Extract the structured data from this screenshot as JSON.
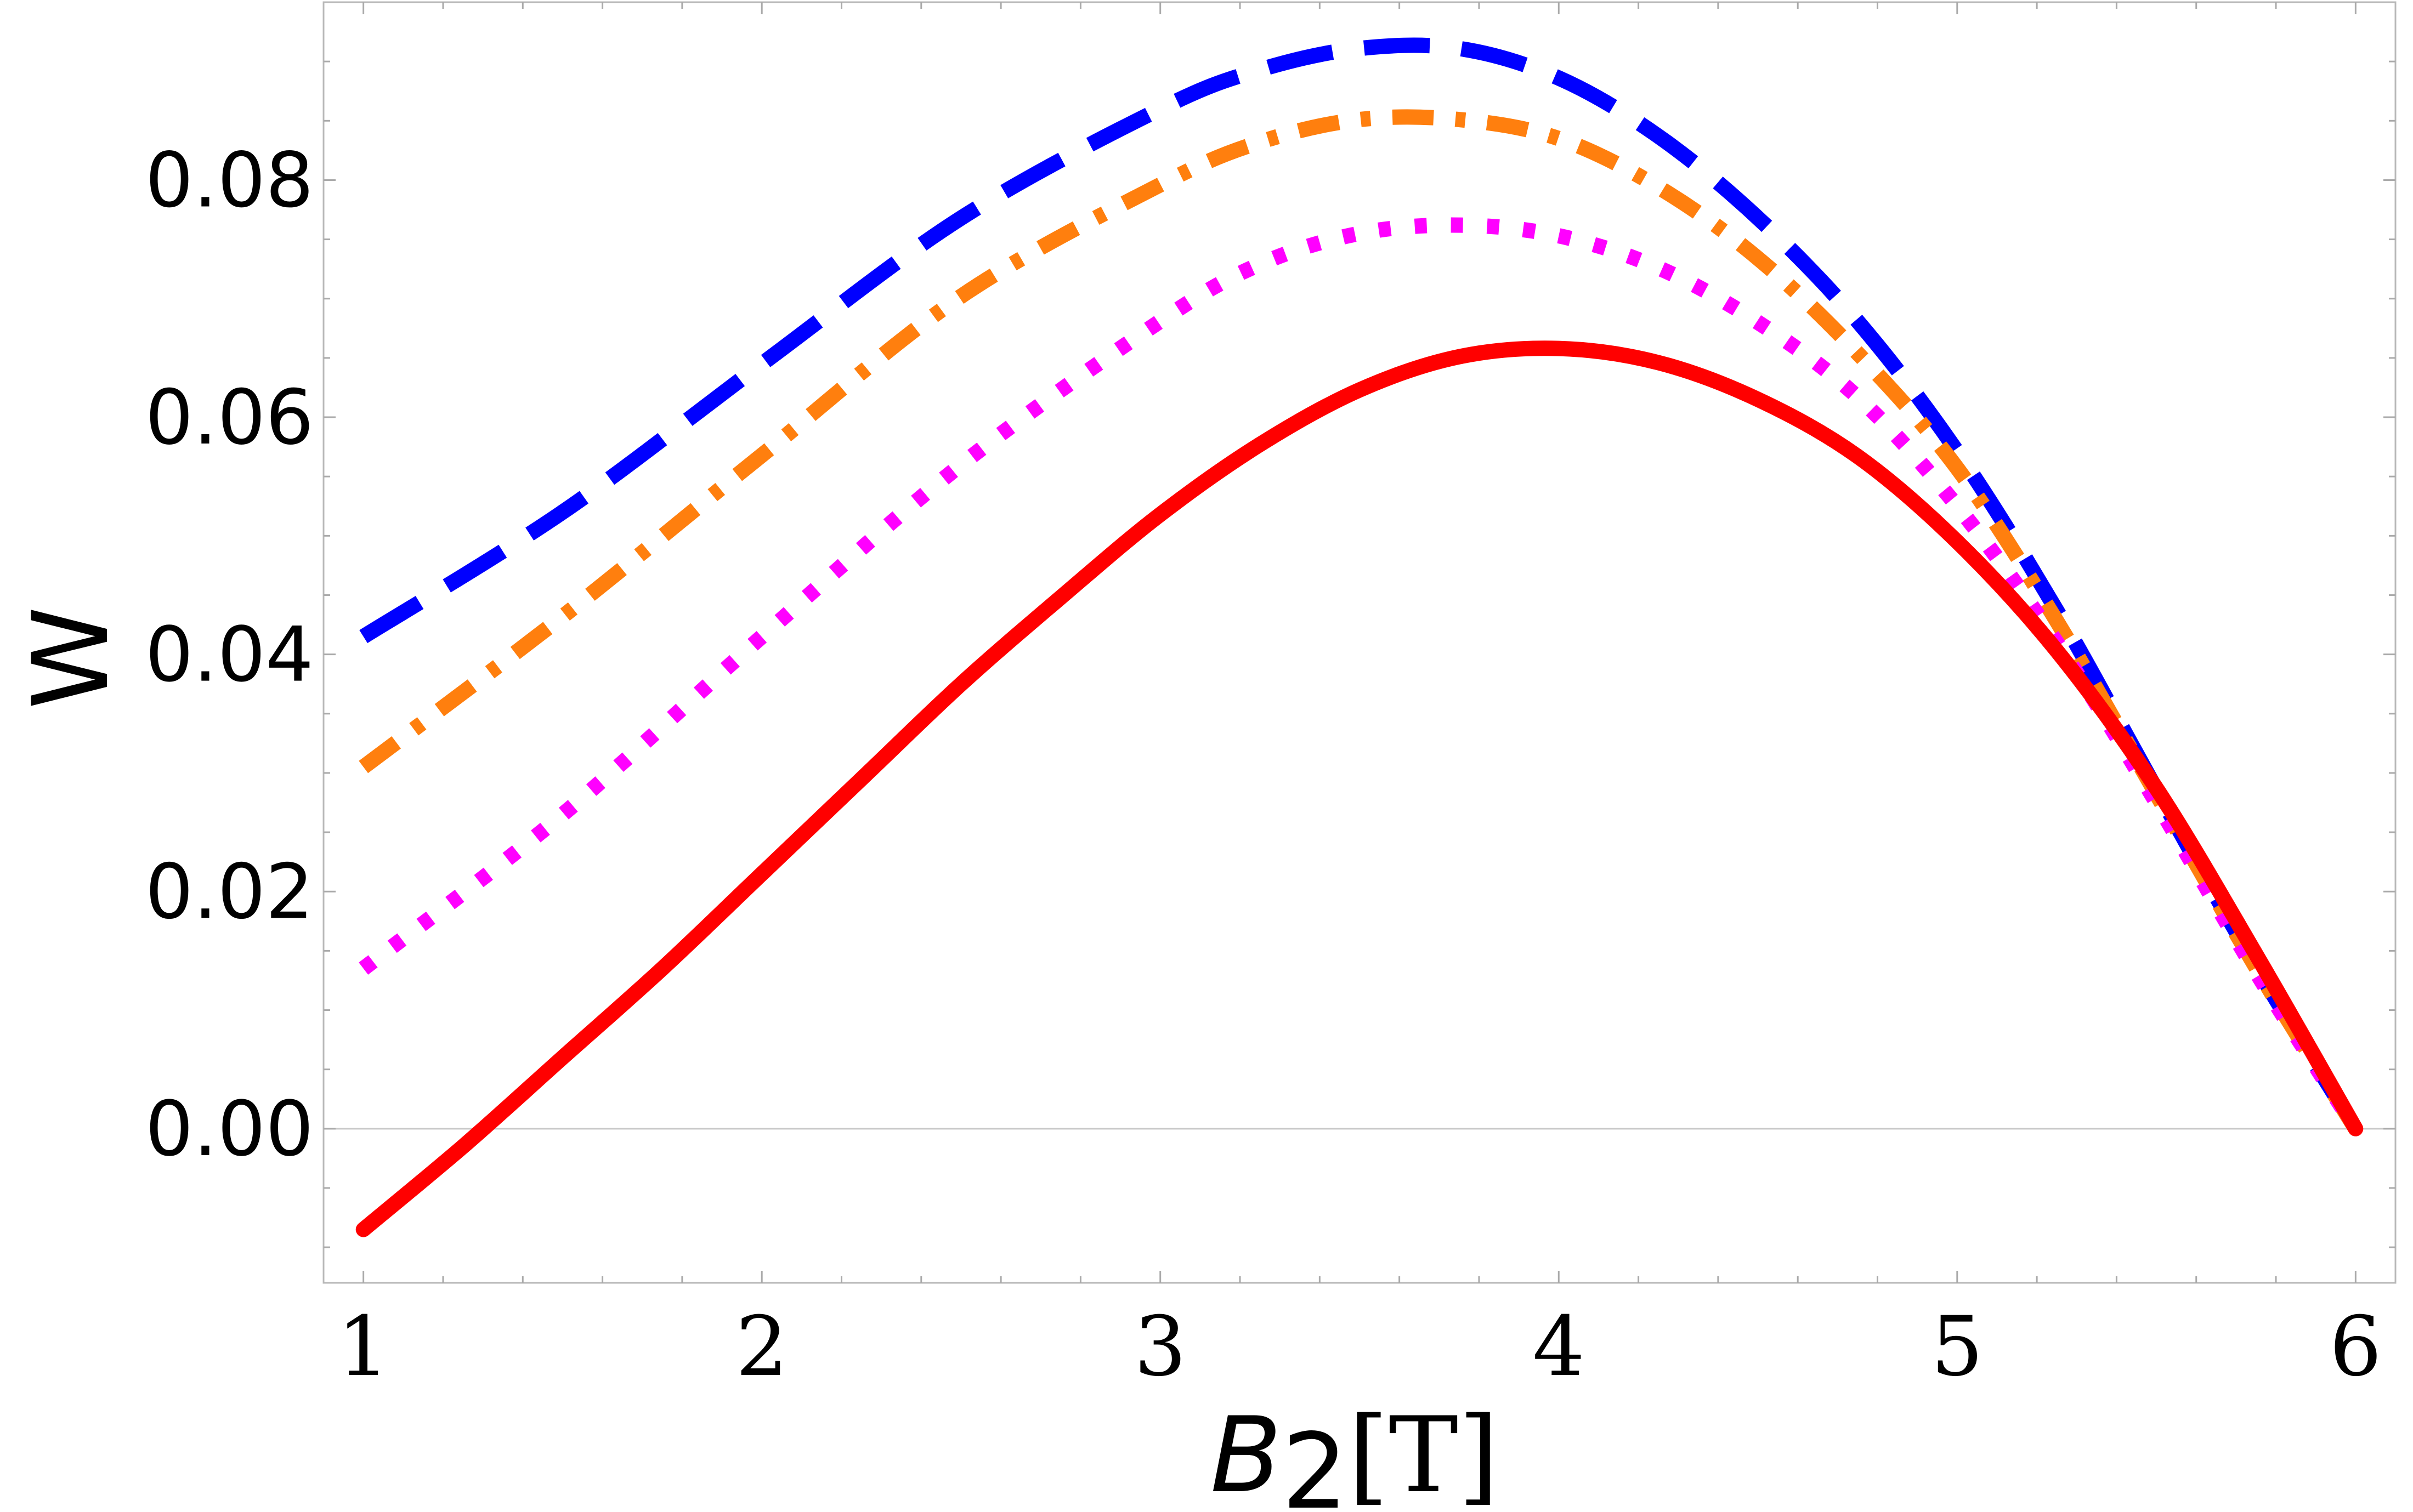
{
  "chart_data": {
    "type": "line",
    "title": "",
    "xlabel": {
      "symbol": "B",
      "subscript": "2",
      "unit": "[T]"
    },
    "ylabel": "W",
    "xlim": [
      0.9,
      6.1
    ],
    "ylim": [
      -0.013,
      0.095
    ],
    "xticks": [
      1,
      2,
      3,
      4,
      5,
      6
    ],
    "xtick_labels": [
      "1",
      "2",
      "3",
      "4",
      "5",
      "6"
    ],
    "yticks": [
      0.0,
      0.02,
      0.04,
      0.06,
      0.08
    ],
    "ytick_labels": [
      "0.00",
      "0.02",
      "0.04",
      "0.06",
      "0.08"
    ],
    "grid": false,
    "zero_line": true,
    "series": [
      {
        "name": "dashed",
        "color": "#0000ff",
        "dash": "dashed",
        "x": [
          1.0,
          1.5,
          2.0,
          2.5,
          3.0,
          3.25,
          3.5,
          3.75,
          4.0,
          4.25,
          4.5,
          4.75,
          5.0,
          5.25,
          5.5,
          5.75,
          6.0
        ],
        "y": [
          0.0415,
          0.052,
          0.0645,
          0.0768,
          0.086,
          0.0893,
          0.0911,
          0.0911,
          0.0886,
          0.0837,
          0.0768,
          0.0681,
          0.0571,
          0.0437,
          0.0286,
          0.0137,
          0.0
        ]
      },
      {
        "name": "dot-dashed",
        "color": "#ff7f0e",
        "dash": "dotdash",
        "x": [
          1.0,
          1.5,
          2.0,
          2.5,
          3.0,
          3.25,
          3.5,
          3.75,
          4.0,
          4.25,
          4.5,
          4.75,
          5.0,
          5.25,
          5.5,
          5.75,
          6.0
        ],
        "y": [
          0.0305,
          0.0432,
          0.0568,
          0.0702,
          0.0796,
          0.0832,
          0.0851,
          0.0851,
          0.0835,
          0.0794,
          0.0734,
          0.0654,
          0.0557,
          0.0428,
          0.0282,
          0.0136,
          0.0
        ]
      },
      {
        "name": "dotted",
        "color": "#ff00ff",
        "dash": "dotted",
        "x": [
          1.0,
          1.5,
          2.0,
          2.5,
          3.0,
          3.25,
          3.5,
          3.75,
          4.0,
          4.25,
          4.5,
          4.75,
          5.0,
          5.25,
          5.5,
          5.75,
          6.0
        ],
        "y": [
          0.0135,
          0.0265,
          0.0415,
          0.056,
          0.0681,
          0.0729,
          0.0755,
          0.0762,
          0.0753,
          0.0726,
          0.068,
          0.0617,
          0.0525,
          0.041,
          0.0275,
          0.0132,
          0.0
        ]
      },
      {
        "name": "solid",
        "color": "#ff0000",
        "dash": "solid",
        "x": [
          1.0,
          1.25,
          1.5,
          1.75,
          2.0,
          2.25,
          2.5,
          2.75,
          3.0,
          3.25,
          3.5,
          3.75,
          4.0,
          4.25,
          4.5,
          4.75,
          5.0,
          5.25,
          5.5,
          5.75,
          6.0
        ],
        "y": [
          -0.0085,
          -0.0015,
          0.006,
          0.0135,
          0.0215,
          0.0295,
          0.0375,
          0.0448,
          0.0518,
          0.0577,
          0.0623,
          0.0651,
          0.0658,
          0.0646,
          0.0615,
          0.0567,
          0.0495,
          0.0403,
          0.0287,
          0.0147,
          0.0
        ]
      }
    ]
  }
}
